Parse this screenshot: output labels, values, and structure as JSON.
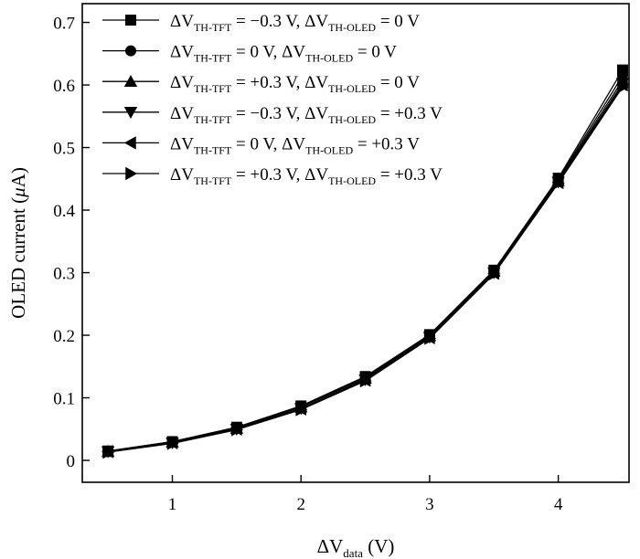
{
  "chart_data": {
    "type": "line",
    "title": "",
    "xlabel": {
      "prefix": "ΔV",
      "sub": "data",
      "suffix": " (V)"
    },
    "ylabel": {
      "prefix": "OLED current (",
      "mu": "μ",
      "suffix": "A)"
    },
    "xlim": [
      0.3,
      4.55
    ],
    "ylim": [
      -0.035,
      0.73
    ],
    "xticks": [
      1,
      2,
      3,
      4
    ],
    "xtick_labels": [
      "1",
      "2",
      "3",
      "4"
    ],
    "yticks": [
      0,
      0.1,
      0.2,
      0.3,
      0.4,
      0.5,
      0.6,
      0.7
    ],
    "ytick_labels": [
      "0",
      "0.1",
      "0.2",
      "0.3",
      "0.4",
      "0.5",
      "0.6",
      "0.7"
    ],
    "grid": false,
    "legend_position": "top-left",
    "x": [
      0.5,
      1.0,
      1.5,
      2.0,
      2.5,
      3.0,
      3.5,
      4.0,
      4.5
    ],
    "series": [
      {
        "marker": "square",
        "legend": [
          {
            "t": "ΔV"
          },
          {
            "t": "TH-TFT",
            "sub": true
          },
          {
            "t": " = −0.3 V, ΔV"
          },
          {
            "t": "TH-OLED",
            "sub": true
          },
          {
            "t": " = 0 V"
          }
        ],
        "values": [
          0.015,
          0.03,
          0.053,
          0.087,
          0.134,
          0.201,
          0.304,
          0.451,
          0.624
        ]
      },
      {
        "marker": "circle",
        "legend": [
          {
            "t": "ΔV"
          },
          {
            "t": "TH-TFT",
            "sub": true
          },
          {
            "t": " = 0 V, ΔV"
          },
          {
            "t": "TH-OLED",
            "sub": true
          },
          {
            "t": " = 0 V"
          }
        ],
        "values": [
          0.015,
          0.03,
          0.052,
          0.086,
          0.133,
          0.2,
          0.303,
          0.449,
          0.615
        ]
      },
      {
        "marker": "triangle-up",
        "legend": [
          {
            "t": "ΔV"
          },
          {
            "t": "TH-TFT",
            "sub": true
          },
          {
            "t": " = +0.3 V, ΔV"
          },
          {
            "t": "TH-OLED",
            "sub": true
          },
          {
            "t": " = 0 V"
          }
        ],
        "values": [
          0.014,
          0.029,
          0.051,
          0.085,
          0.131,
          0.199,
          0.302,
          0.447,
          0.608
        ]
      },
      {
        "marker": "triangle-down",
        "legend": [
          {
            "t": "ΔV"
          },
          {
            "t": "TH-TFT",
            "sub": true
          },
          {
            "t": " = −0.3 V, ΔV"
          },
          {
            "t": "TH-OLED",
            "sub": true
          },
          {
            "t": " = +0.3 V"
          }
        ],
        "values": [
          0.014,
          0.028,
          0.05,
          0.083,
          0.129,
          0.197,
          0.3,
          0.445,
          0.603
        ]
      },
      {
        "marker": "triangle-left",
        "legend": [
          {
            "t": "ΔV"
          },
          {
            "t": "TH-TFT",
            "sub": true
          },
          {
            "t": " = 0 V, ΔV"
          },
          {
            "t": "TH-OLED",
            "sub": true
          },
          {
            "t": " = +0.3 V"
          }
        ],
        "values": [
          0.014,
          0.028,
          0.05,
          0.082,
          0.128,
          0.196,
          0.299,
          0.444,
          0.6
        ]
      },
      {
        "marker": "triangle-right",
        "legend": [
          {
            "t": "ΔV"
          },
          {
            "t": "TH-TFT",
            "sub": true
          },
          {
            "t": " = +0.3 V, ΔV"
          },
          {
            "t": "TH-OLED",
            "sub": true
          },
          {
            "t": " = +0.3 V"
          }
        ],
        "values": [
          0.013,
          0.027,
          0.049,
          0.081,
          0.127,
          0.195,
          0.298,
          0.443,
          0.597
        ]
      }
    ]
  }
}
